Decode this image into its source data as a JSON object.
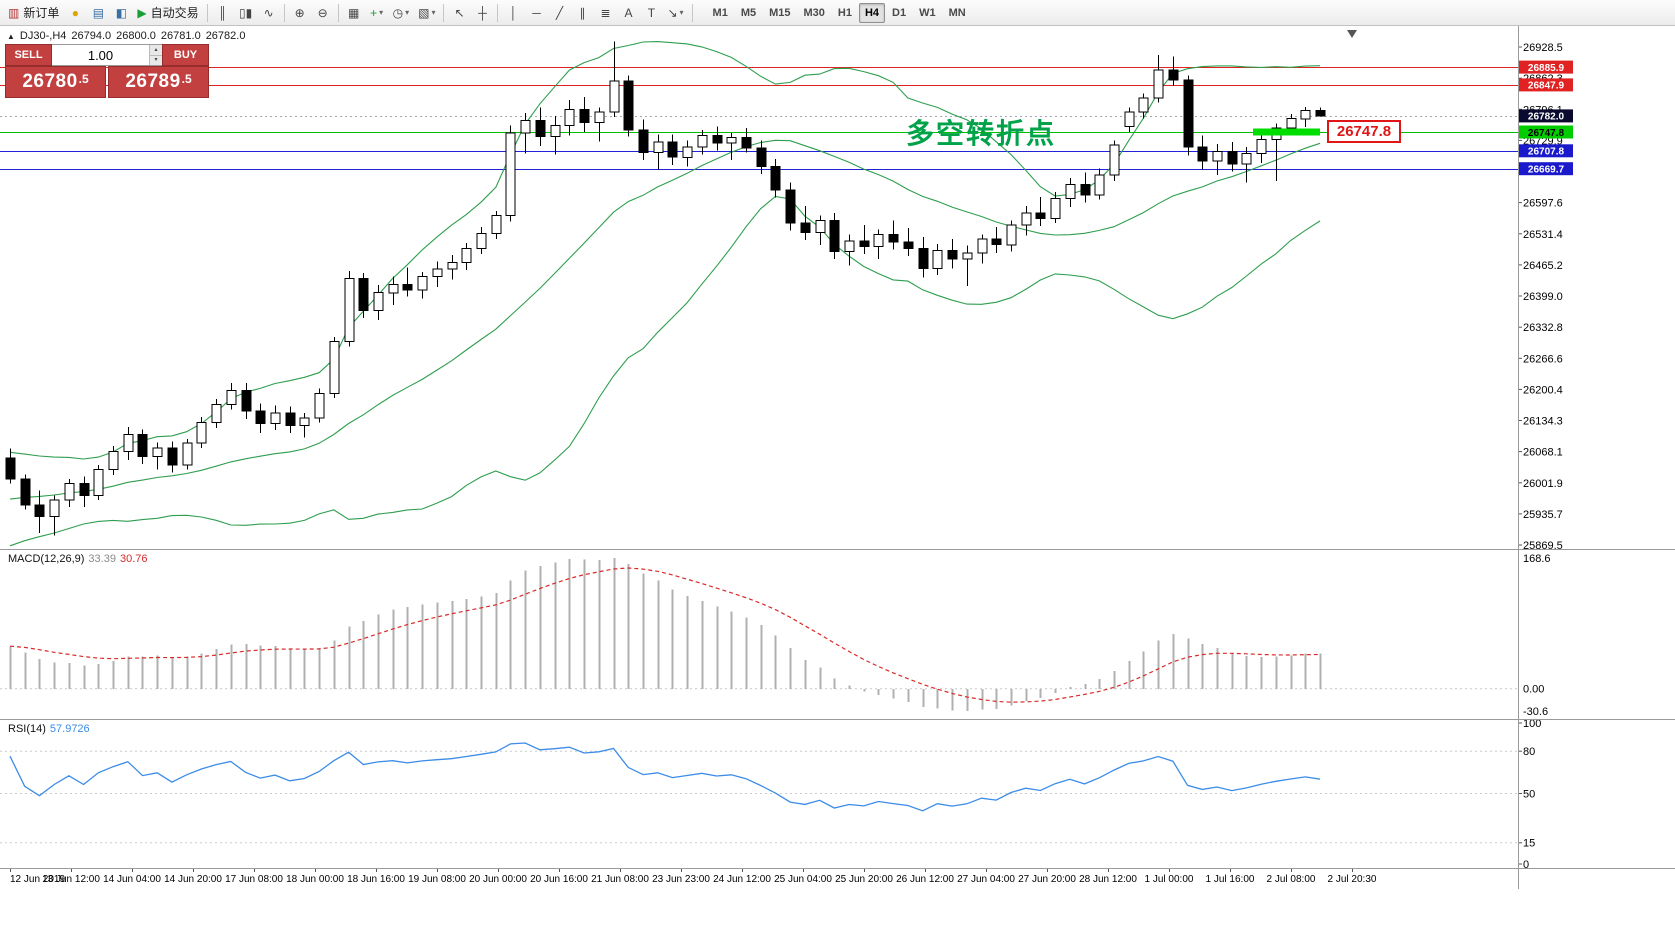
{
  "toolbar": {
    "items": [
      {
        "name": "new-order-button",
        "glyph": "▥",
        "color": "#b03030",
        "label": "新订单"
      },
      {
        "name": "alerts-icon-button",
        "glyph": "●",
        "color": "#e0a400"
      },
      {
        "name": "market-watch-button",
        "glyph": "▤",
        "color": "#3a6ea5"
      },
      {
        "name": "data-window-button",
        "glyph": "◧",
        "color": "#3a6ea5"
      },
      {
        "name": "autotrading-button",
        "glyph": "▶",
        "color": "#18a035",
        "label": "自动交易"
      },
      {
        "type": "sep"
      },
      {
        "name": "bar-chart-button",
        "glyph": "║",
        "color": "#444"
      },
      {
        "name": "candlestick-chart-button",
        "glyph": "▯▮",
        "color": "#444"
      },
      {
        "name": "line-chart-button",
        "glyph": "∿",
        "color": "#444"
      },
      {
        "type": "sep"
      },
      {
        "name": "zoom-in-button",
        "glyph": "⊕",
        "color": "#444"
      },
      {
        "name": "zoom-out-button",
        "glyph": "⊖",
        "color": "#444"
      },
      {
        "type": "sep"
      },
      {
        "name": "tile-windows-button",
        "glyph": "▦",
        "color": "#444"
      },
      {
        "name": "indicators-button",
        "glyph": "+",
        "color": "#18a035",
        "caret": true
      },
      {
        "name": "periods-button",
        "glyph": "◷",
        "color": "#444",
        "caret": true
      },
      {
        "name": "templates-button",
        "glyph": "▧",
        "color": "#444",
        "caret": true
      },
      {
        "type": "sep"
      },
      {
        "name": "cursor-button",
        "glyph": "↖",
        "color": "#444"
      },
      {
        "name": "crosshair-button",
        "glyph": "┼",
        "color": "#444"
      },
      {
        "type": "sep"
      },
      {
        "name": "vertical-line-button",
        "glyph": "│",
        "color": "#444"
      },
      {
        "name": "horizontal-line-button",
        "glyph": "─",
        "color": "#444"
      },
      {
        "name": "trendline-button",
        "glyph": "╱",
        "color": "#444"
      },
      {
        "name": "channel-button",
        "glyph": "∥",
        "color": "#444"
      },
      {
        "name": "fibonacci-button",
        "glyph": "≣",
        "color": "#444"
      },
      {
        "name": "text-button",
        "glyph": "A",
        "color": "#444"
      },
      {
        "name": "label-button",
        "glyph": "T",
        "color": "#444"
      },
      {
        "name": "arrows-button",
        "glyph": "↘",
        "color": "#444",
        "caret": true
      },
      {
        "type": "sep"
      }
    ],
    "timeframes": [
      "M1",
      "M5",
      "M15",
      "M30",
      "H1",
      "H4",
      "D1",
      "W1",
      "MN"
    ],
    "active_timeframe": "H4",
    "right_icons": [
      {
        "name": "search-icon-button",
        "glyph": "⌕"
      },
      {
        "name": "new-chart-icon-button",
        "glyph": "◫"
      }
    ]
  },
  "chart": {
    "symbol_ohlc": {
      "toggle": "▲",
      "symbol": "DJ30-,H4",
      "open": "26794.0",
      "high": "26800.0",
      "low": "26781.0",
      "close": "26782.0"
    },
    "one_click": {
      "sell_label": "SELL",
      "buy_label": "BUY",
      "volume": "1.00",
      "sell_price_main": "26780",
      "sell_price_pips": ".5",
      "buy_price_main": "26789",
      "buy_price_pips": ".5"
    },
    "annotation": "多空转折点",
    "annotation_color": "#00a24a",
    "price_callout": "26747.8",
    "price_callout_color": "#e01515",
    "hlines": [
      {
        "value": 26885.9,
        "color": "#e02222"
      },
      {
        "value": 26847.9,
        "color": "#e02222"
      },
      {
        "value": 26747.8,
        "color": "#00c000"
      },
      {
        "value": 26707.8,
        "color": "#2323d6"
      },
      {
        "value": 26669.7,
        "color": "#2323d6"
      }
    ],
    "highlight_bar": {
      "value": 26747.8,
      "color": "#00dd00"
    },
    "bid_line": {
      "value": 26782.0,
      "color": "#a8a8b4"
    },
    "tags": [
      {
        "text": "26885.9",
        "value": 26885.9,
        "bg": "#e02222",
        "fg": "#ffffff"
      },
      {
        "text": "26847.9",
        "value": 26847.9,
        "bg": "#e02222",
        "fg": "#ffffff"
      },
      {
        "text": "26782.0",
        "value": 26782.0,
        "bg": "#0a0a30",
        "fg": "#ffffff"
      },
      {
        "text": "26747.8",
        "value": 26747.8,
        "bg": "#00cc00",
        "fg": "#000000"
      },
      {
        "text": "26707.8",
        "value": 26707.8,
        "bg": "#1a1acc",
        "fg": "#ffffff"
      },
      {
        "text": "26669.7",
        "value": 26669.7,
        "bg": "#1a1acc",
        "fg": "#ffffff"
      }
    ],
    "axis_labels": [
      {
        "t": "26928.5",
        "v": 26928.5
      },
      {
        "t": "26862.3",
        "v": 26862.3
      },
      {
        "t": "26796.1",
        "v": 26796.1
      },
      {
        "t": "26729.9",
        "v": 26729.9
      },
      {
        "t": "26597.6",
        "v": 26597.6
      },
      {
        "t": "26531.4",
        "v": 26531.4
      },
      {
        "t": "26465.2",
        "v": 26465.2
      },
      {
        "t": "26399.0",
        "v": 26399.0
      },
      {
        "t": "26332.8",
        "v": 26332.8
      },
      {
        "t": "26266.6",
        "v": 26266.6
      },
      {
        "t": "26200.4",
        "v": 26200.4
      },
      {
        "t": "26134.3",
        "v": 26134.3
      },
      {
        "t": "26068.1",
        "v": 26068.1
      },
      {
        "t": "26001.9",
        "v": 26001.9
      },
      {
        "t": "25935.7",
        "v": 25935.7
      },
      {
        "t": "25869.5",
        "v": 25869.5
      }
    ]
  },
  "chart_data": {
    "type": "candlestick",
    "symbol": "DJ30-",
    "timeframe": "H4",
    "ylim": [
      25869.5,
      26928.5
    ],
    "colors": {
      "bull": "#ffffff",
      "bear": "#000000",
      "wick": "#000000"
    },
    "candles": [
      [
        26055,
        26075,
        26000,
        26010
      ],
      [
        26010,
        26020,
        25945,
        25955
      ],
      [
        25955,
        25985,
        25895,
        25930
      ],
      [
        25930,
        25975,
        25890,
        25965
      ],
      [
        25965,
        26010,
        25950,
        26000
      ],
      [
        26000,
        26015,
        25950,
        25975
      ],
      [
        25975,
        26040,
        25965,
        26030
      ],
      [
        26030,
        26080,
        26018,
        26068
      ],
      [
        26068,
        26120,
        26050,
        26105
      ],
      [
        26105,
        26115,
        26042,
        26058
      ],
      [
        26058,
        26088,
        26030,
        26076
      ],
      [
        26076,
        26090,
        26024,
        26040
      ],
      [
        26040,
        26095,
        26030,
        26086
      ],
      [
        26086,
        26142,
        26076,
        26130
      ],
      [
        26130,
        26180,
        26118,
        26168
      ],
      [
        26168,
        26214,
        26158,
        26198
      ],
      [
        26198,
        26214,
        26138,
        26154
      ],
      [
        26154,
        26170,
        26108,
        26128
      ],
      [
        26128,
        26166,
        26114,
        26150
      ],
      [
        26150,
        26164,
        26108,
        26124
      ],
      [
        26124,
        26150,
        26098,
        26140
      ],
      [
        26140,
        26202,
        26130,
        26192
      ],
      [
        26192,
        26312,
        26182,
        26302
      ],
      [
        26302,
        26452,
        26292,
        26436
      ],
      [
        26436,
        26448,
        26352,
        26368
      ],
      [
        26368,
        26422,
        26348,
        26406
      ],
      [
        26406,
        26440,
        26380,
        26424
      ],
      [
        26424,
        26460,
        26398,
        26412
      ],
      [
        26412,
        26450,
        26394,
        26440
      ],
      [
        26440,
        26472,
        26418,
        26456
      ],
      [
        26456,
        26486,
        26434,
        26470
      ],
      [
        26470,
        26512,
        26454,
        26500
      ],
      [
        26500,
        26546,
        26488,
        26532
      ],
      [
        26532,
        26580,
        26520,
        26570
      ],
      [
        26570,
        26762,
        26558,
        26746
      ],
      [
        26746,
        26788,
        26702,
        26772
      ],
      [
        26772,
        26800,
        26718,
        26738
      ],
      [
        26738,
        26782,
        26700,
        26762
      ],
      [
        26762,
        26816,
        26740,
        26796
      ],
      [
        26796,
        26822,
        26748,
        26768
      ],
      [
        26768,
        26800,
        26728,
        26790
      ],
      [
        26790,
        26940,
        26780,
        26856
      ],
      [
        26856,
        26868,
        26738,
        26752
      ],
      [
        26752,
        26774,
        26688,
        26704
      ],
      [
        26704,
        26742,
        26668,
        26726
      ],
      [
        26726,
        26742,
        26678,
        26694
      ],
      [
        26694,
        26730,
        26674,
        26716
      ],
      [
        26716,
        26752,
        26700,
        26740
      ],
      [
        26740,
        26760,
        26708,
        26724
      ],
      [
        26724,
        26746,
        26688,
        26736
      ],
      [
        26736,
        26756,
        26704,
        26714
      ],
      [
        26714,
        26730,
        26658,
        26674
      ],
      [
        26674,
        26690,
        26608,
        26624
      ],
      [
        26624,
        26640,
        26538,
        26554
      ],
      [
        26554,
        26590,
        26518,
        26534
      ],
      [
        26534,
        26570,
        26508,
        26560
      ],
      [
        26560,
        26576,
        26478,
        26494
      ],
      [
        26494,
        26530,
        26464,
        26516
      ],
      [
        26516,
        26550,
        26488,
        26504
      ],
      [
        26504,
        26540,
        26478,
        26530
      ],
      [
        26530,
        26560,
        26498,
        26514
      ],
      [
        26514,
        26544,
        26484,
        26500
      ],
      [
        26500,
        26524,
        26438,
        26458
      ],
      [
        26458,
        26510,
        26444,
        26496
      ],
      [
        26496,
        26520,
        26458,
        26478
      ],
      [
        26478,
        26506,
        26420,
        26490
      ],
      [
        26490,
        26530,
        26468,
        26520
      ],
      [
        26520,
        26546,
        26490,
        26508
      ],
      [
        26508,
        26560,
        26494,
        26550
      ],
      [
        26550,
        26590,
        26528,
        26576
      ],
      [
        26576,
        26610,
        26548,
        26564
      ],
      [
        26564,
        26620,
        26554,
        26606
      ],
      [
        26606,
        26650,
        26588,
        26636
      ],
      [
        26636,
        26662,
        26598,
        26614
      ],
      [
        26614,
        26670,
        26604,
        26656
      ],
      [
        26656,
        26730,
        26644,
        26720
      ],
      [
        26760,
        26800,
        26748,
        26790
      ],
      [
        26790,
        26830,
        26776,
        26820
      ],
      [
        26820,
        26912,
        26810,
        26880
      ],
      [
        26880,
        26908,
        26846,
        26858
      ],
      [
        26858,
        26868,
        26698,
        26716
      ],
      [
        26716,
        26740,
        26668,
        26686
      ],
      [
        26686,
        26722,
        26656,
        26706
      ],
      [
        26706,
        26726,
        26664,
        26680
      ],
      [
        26680,
        26716,
        26640,
        26702
      ],
      [
        26702,
        26742,
        26682,
        26732
      ],
      [
        26732,
        26766,
        26644,
        26756
      ],
      [
        26756,
        26786,
        26740,
        26776
      ],
      [
        26776,
        26801,
        26758,
        26794
      ],
      [
        26794,
        26800,
        26781,
        26782
      ]
    ]
  },
  "indicators": {
    "bollinger": {
      "period": 20,
      "deviation": 2,
      "color": "#2f9e4f"
    },
    "macd": {
      "title": "MACD(12,26,9)",
      "main_value": "33.39",
      "signal_value": "30.76",
      "axis_labels": [
        "168.6",
        "0.00",
        "-30.6"
      ],
      "histogram_color": "#b0b0b0",
      "signal_color": "#d92b2b"
    },
    "rsi": {
      "title": "RSI(14)",
      "value": "57.9726",
      "color": "#3c8ce8",
      "levels": [
        80,
        50,
        15
      ],
      "axis_labels": [
        {
          "t": "100",
          "v": 100
        },
        {
          "t": "80",
          "v": 80
        },
        {
          "t": "50",
          "v": 50
        },
        {
          "t": "15",
          "v": 15
        },
        {
          "t": "0",
          "v": 0
        }
      ]
    }
  },
  "time_axis": [
    "12 Jun 2019",
    "13 Jun 12:00",
    "14 Jun 04:00",
    "14 Jun 20:00",
    "17 Jun 08:00",
    "18 Jun 00:00",
    "18 Jun 16:00",
    "19 Jun 08:00",
    "20 Jun 00:00",
    "20 Jun 16:00",
    "21 Jun 08:00",
    "23 Jun 23:00",
    "24 Jun 12:00",
    "25 Jun 04:00",
    "25 Jun 20:00",
    "26 Jun 12:00",
    "27 Jun 04:00",
    "27 Jun 20:00",
    "28 Jun 12:00",
    "1 Jul 00:00",
    "1 Jul 16:00",
    "2 Jul 08:00",
    "2 Jul 20:30"
  ]
}
